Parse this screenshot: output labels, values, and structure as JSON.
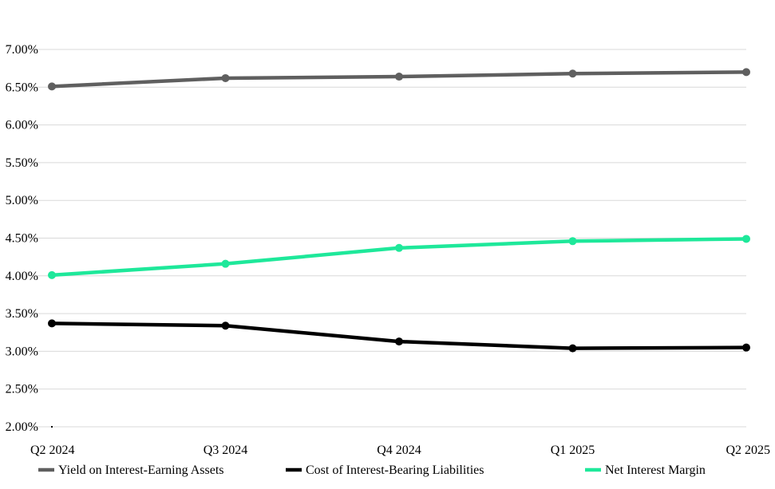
{
  "chart_data": {
    "type": "line",
    "title": "",
    "xlabel": "",
    "ylabel": "",
    "categories": [
      "Q2 2024",
      "Q3 2024",
      "Q4 2024",
      "Q1 2025",
      "Q2 2025"
    ],
    "ylim": [
      2.0,
      7.0
    ],
    "yticks": [
      2.0,
      2.5,
      3.0,
      3.5,
      4.0,
      4.5,
      5.0,
      5.5,
      6.0,
      6.5,
      7.0
    ],
    "ytick_labels": [
      "2.00%",
      "2.50%",
      "3.00%",
      "3.50%",
      "4.00%",
      "4.50%",
      "5.00%",
      "5.50%",
      "6.00%",
      "6.50%",
      "7.00%"
    ],
    "grid": true,
    "legend_position": "bottom",
    "series": [
      {
        "name": "Yield on Interest-Earning Assets",
        "values": [
          6.51,
          6.62,
          6.64,
          6.68,
          6.7
        ],
        "color": "#5f5f5f"
      },
      {
        "name": "Cost of Interest-Bearing Liabilities",
        "values": [
          3.37,
          3.34,
          3.13,
          3.04,
          3.05
        ],
        "color": "#000000"
      },
      {
        "name": "Net Interest Margin",
        "values": [
          4.01,
          4.16,
          4.37,
          4.46,
          4.49
        ],
        "color": "#1ee89a"
      }
    ]
  }
}
